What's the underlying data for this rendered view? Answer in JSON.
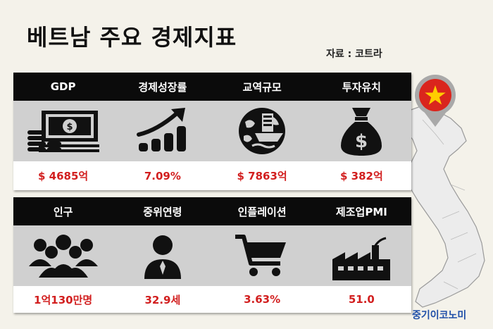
{
  "title": "베트남 주요 경제지표",
  "source": "자료 : 코트라",
  "brand": "중기이코노미",
  "row1": {
    "headers": [
      "GDP",
      "경제성장률",
      "교역규모",
      "투자유치"
    ],
    "values": [
      "$ 4685억",
      "7.09%",
      "$ 7863억",
      "$ 382억"
    ],
    "icons": [
      "money-stack-icon",
      "growth-bars-icon",
      "globe-ship-icon",
      "money-bag-icon"
    ]
  },
  "row2": {
    "headers": [
      "인구",
      "중위연령",
      "인플레이션",
      "제조업PMI"
    ],
    "values": [
      "1억130만명",
      "32.9세",
      "3.63%",
      "51.0"
    ],
    "icons": [
      "crowd-icon",
      "person-icon",
      "shopping-cart-icon",
      "factory-icon"
    ]
  },
  "colors": {
    "value_red": "#d21f1f",
    "flag_red": "#da251d",
    "flag_star": "#ffcd00",
    "brand_blue": "#1f4fa8"
  }
}
